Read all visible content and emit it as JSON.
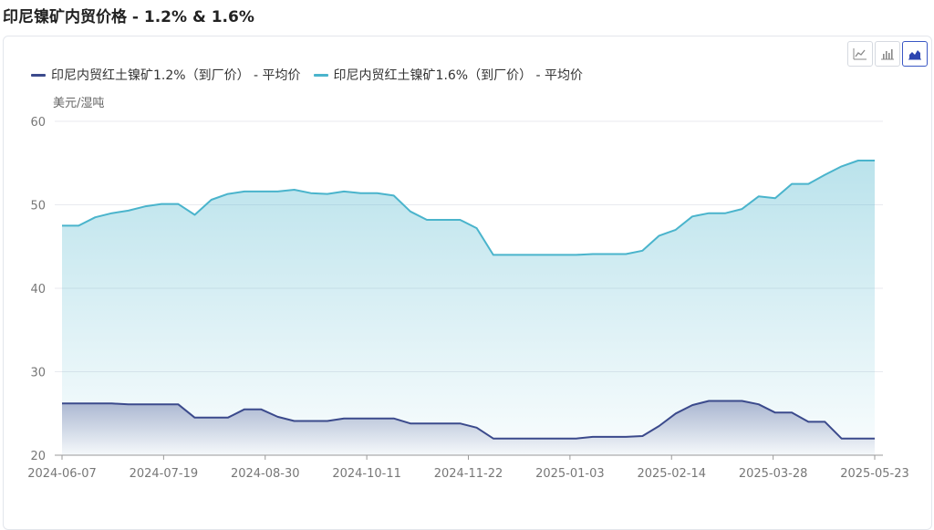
{
  "page": {
    "title": "印尼镍矿内贸价格 - 1.2% & 1.6%"
  },
  "toolbar": {
    "buttons": [
      {
        "name": "line-chart-button",
        "icon": "line-chart-icon",
        "active": false
      },
      {
        "name": "bar-chart-button",
        "icon": "bar-chart-icon",
        "active": false
      },
      {
        "name": "area-chart-button",
        "icon": "area-chart-icon",
        "active": true
      }
    ]
  },
  "chart_data": {
    "type": "area",
    "ylabel": "美元/湿吨",
    "ylim": [
      20,
      60
    ],
    "yticks": [
      20,
      30,
      40,
      50,
      60
    ],
    "grid": true,
    "legend_position": "top-left",
    "xtick_labels": [
      "2024-06-07",
      "2024-07-19",
      "2024-08-30",
      "2024-10-11",
      "2024-11-22",
      "2025-01-03",
      "2025-02-14",
      "2025-03-28",
      "2025-05-23"
    ],
    "series": [
      {
        "name": "印尼内贸红土镍矿1.2%（到厂价） - 平均价",
        "color": "#3b4a8c",
        "values": [
          26.2,
          26.2,
          26.2,
          26.2,
          26.1,
          26.1,
          26.1,
          26.1,
          24.5,
          24.5,
          24.5,
          25.5,
          25.5,
          24.6,
          24.1,
          24.1,
          24.1,
          24.4,
          24.4,
          24.4,
          24.4,
          23.8,
          23.8,
          23.8,
          23.8,
          23.3,
          22.0,
          22.0,
          22.0,
          22.0,
          22.0,
          22.0,
          22.2,
          22.2,
          22.2,
          22.3,
          23.5,
          25.0,
          26.0,
          26.5,
          26.5,
          26.5,
          26.1,
          25.1,
          25.1,
          24.0,
          24.0,
          22.0,
          22.0,
          22.0
        ]
      },
      {
        "name": "印尼内贸红土镍矿1.6%（到厂价） - 平均价",
        "color": "#4ab4cc",
        "values": [
          47.5,
          47.5,
          48.5,
          49.0,
          49.3,
          49.8,
          50.1,
          50.1,
          48.8,
          50.6,
          51.3,
          51.6,
          51.6,
          51.6,
          51.8,
          51.4,
          51.3,
          51.6,
          51.4,
          51.4,
          51.1,
          49.2,
          48.2,
          48.2,
          48.2,
          47.2,
          44.0,
          44.0,
          44.0,
          44.0,
          44.0,
          44.0,
          44.1,
          44.1,
          44.1,
          44.5,
          46.3,
          47.0,
          48.6,
          49.0,
          49.0,
          49.5,
          51.0,
          50.8,
          52.5,
          52.5,
          53.6,
          54.6,
          55.3,
          55.3
        ]
      }
    ]
  }
}
